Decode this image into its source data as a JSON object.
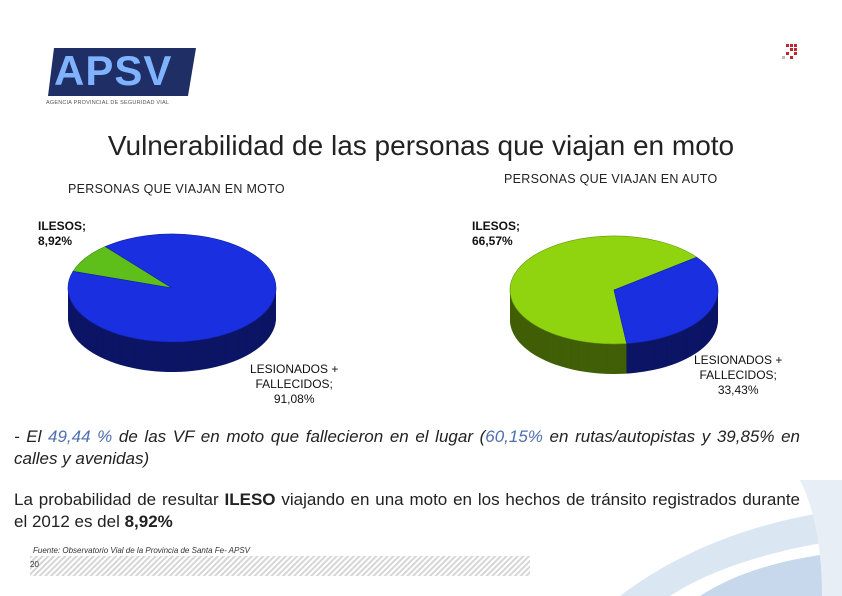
{
  "logo": {
    "text": "APSV",
    "subtitle": "AGENCIA PROVINCIAL DE SEGURIDAD VIAL",
    "color": "#4e7fc5"
  },
  "title": "Vulnerabilidad de las personas que viajan en moto",
  "chart_data": [
    {
      "type": "pie",
      "title": "PERSONAS QUE VIAJAN EN MOTO",
      "labels": [
        "ILESOS",
        "LESIONADOS + FALLECIDOS"
      ],
      "values": [
        8.92,
        91.08
      ],
      "colors": [
        "#5fbf1a",
        "#1a2fe0"
      ],
      "label_texts": [
        {
          "line1": "ILESOS;",
          "line2": "8,92%"
        },
        {
          "line1": "LESIONADOS +",
          "line2": "FALLECIDOS;",
          "line3": "91,08%"
        }
      ]
    },
    {
      "type": "pie",
      "title": "PERSONAS QUE VIAJAN EN AUTO",
      "labels": [
        "ILESOS",
        "LESIONADOS + FALLECIDOS"
      ],
      "values": [
        66.57,
        33.43
      ],
      "colors": [
        "#8fd40e",
        "#1a2fe0"
      ],
      "label_texts": [
        {
          "line1": "ILESOS;",
          "line2": "66,57%"
        },
        {
          "line1": "LESIONADOS +",
          "line2": "FALLECIDOS;",
          "line3": "33,43%"
        }
      ]
    }
  ],
  "paragraph1": {
    "p1": "- El ",
    "v1": "49,44 %",
    "p2": " de las VF en moto que fallecieron en el lugar (",
    "v2": "60,15%",
    "p3": " en rutas/autopistas y 39,85% en calles y avenidas)"
  },
  "paragraph2": {
    "p1": "La probabilidad de resultar ",
    "b1": "ILESO",
    "p2": " viajando en una moto en los hechos de tránsito registrados durante el 2012 es del ",
    "b2": "8,92%"
  },
  "source": "Fuente: Observatorio Vial de la Provincia de Santa Fe- APSV",
  "page_number": "20"
}
